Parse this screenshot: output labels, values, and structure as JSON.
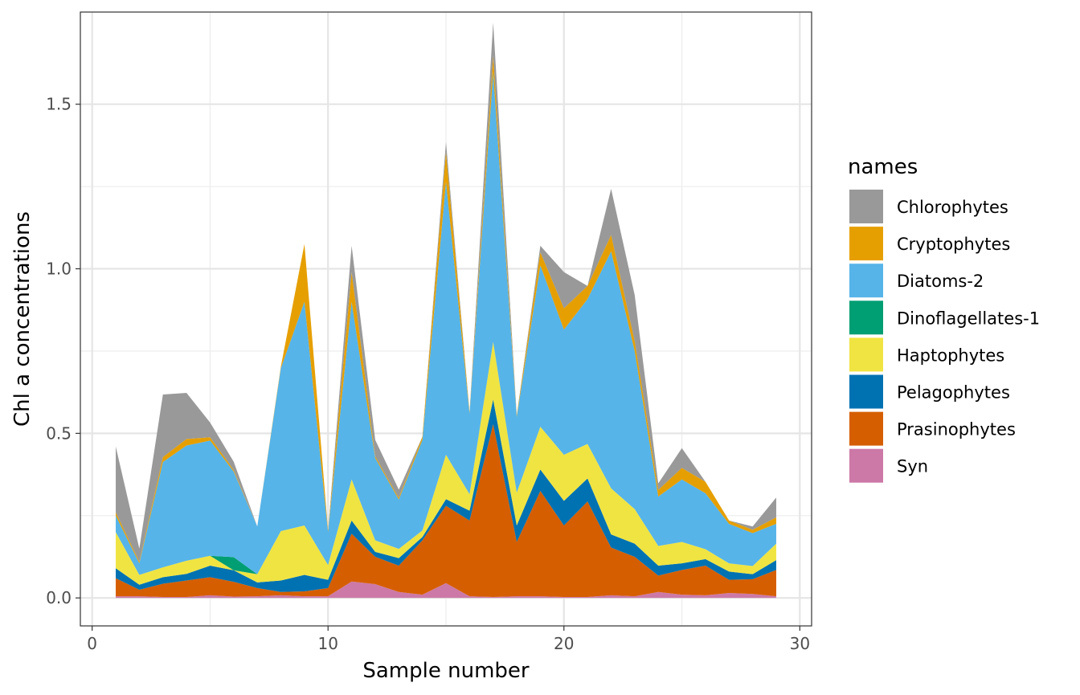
{
  "chart_data": {
    "type": "area",
    "stacked": true,
    "xlabel": "Sample number",
    "ylabel": "Chl a concentrations",
    "xlim": [
      -0.5,
      30.5
    ],
    "ylim": [
      -0.085,
      1.78
    ],
    "x_ticks": [
      0,
      10,
      20,
      30
    ],
    "x_tick_labels": [
      "0",
      "10",
      "20",
      "30"
    ],
    "y_ticks": [
      0.0,
      0.5,
      1.0,
      1.5
    ],
    "y_tick_labels": [
      "0.0",
      "0.5",
      "1.0",
      "1.5"
    ],
    "x_minor_ticks": [
      5,
      15,
      25
    ],
    "y_minor_ticks": [
      0.25,
      0.75,
      1.25
    ],
    "grid": true,
    "legend_position": "right",
    "legend_title": "names",
    "x": [
      1,
      2,
      3,
      4,
      5,
      6,
      7,
      8,
      9,
      10,
      11,
      12,
      13,
      14,
      15,
      16,
      17,
      18,
      19,
      20,
      21,
      22,
      23,
      24,
      25,
      26,
      27,
      28,
      29
    ],
    "series": [
      {
        "name": "Syn",
        "color": "#CC79A7",
        "values": [
          0.005,
          0.005,
          0.003,
          0.003,
          0.008,
          0.004,
          0.005,
          0.008,
          0.005,
          0.005,
          0.05,
          0.042,
          0.018,
          0.01,
          0.045,
          0.005,
          0.003,
          0.005,
          0.005,
          0.003,
          0.003,
          0.008,
          0.005,
          0.018,
          0.01,
          0.008,
          0.015,
          0.012,
          0.005
        ]
      },
      {
        "name": "Prasinophytes",
        "color": "#D55E00",
        "values": [
          0.055,
          0.02,
          0.04,
          0.05,
          0.055,
          0.045,
          0.025,
          0.01,
          0.015,
          0.025,
          0.145,
          0.083,
          0.08,
          0.165,
          0.235,
          0.23,
          0.525,
          0.165,
          0.32,
          0.217,
          0.29,
          0.145,
          0.12,
          0.05,
          0.075,
          0.09,
          0.04,
          0.045,
          0.08
        ]
      },
      {
        "name": "Pelagophytes",
        "color": "#0072B2",
        "values": [
          0.03,
          0.015,
          0.02,
          0.02,
          0.035,
          0.035,
          0.017,
          0.035,
          0.05,
          0.025,
          0.04,
          0.015,
          0.023,
          0.01,
          0.02,
          0.03,
          0.075,
          0.05,
          0.065,
          0.075,
          0.07,
          0.04,
          0.04,
          0.03,
          0.02,
          0.02,
          0.025,
          0.015,
          0.03
        ]
      },
      {
        "name": "Haptophytes",
        "color": "#F0E442",
        "values": [
          0.11,
          0.03,
          0.03,
          0.04,
          0.03,
          0.0,
          0.025,
          0.15,
          0.15,
          0.045,
          0.125,
          0.035,
          0.028,
          0.02,
          0.135,
          0.05,
          0.175,
          0.1,
          0.13,
          0.14,
          0.105,
          0.14,
          0.105,
          0.06,
          0.065,
          0.03,
          0.025,
          0.025,
          0.05
        ]
      },
      {
        "name": "Dinoflagellates-1",
        "color": "#009E73",
        "values": [
          0.0,
          0.0,
          0.0,
          0.0,
          0.0,
          0.04,
          0.0,
          0.0,
          0.0,
          0.0,
          0.0,
          0.0,
          0.0,
          0.0,
          0.0,
          0.0,
          0.0,
          0.0,
          0.0,
          0.0,
          0.0,
          0.0,
          0.0,
          0.0,
          0.0,
          0.0,
          0.0,
          0.0,
          0.0
        ]
      },
      {
        "name": "Diatoms-2",
        "color": "#56B4E9",
        "values": [
          0.05,
          0.035,
          0.32,
          0.35,
          0.35,
          0.26,
          0.145,
          0.495,
          0.68,
          0.1,
          0.54,
          0.25,
          0.15,
          0.275,
          0.83,
          0.245,
          0.82,
          0.23,
          0.49,
          0.38,
          0.44,
          0.72,
          0.48,
          0.15,
          0.19,
          0.17,
          0.12,
          0.1,
          0.06
        ]
      },
      {
        "name": "Cryptophytes",
        "color": "#E69F00",
        "values": [
          0.01,
          0.005,
          0.015,
          0.02,
          0.01,
          0.005,
          0.0,
          0.005,
          0.175,
          0.005,
          0.09,
          0.005,
          0.005,
          0.01,
          0.09,
          0.005,
          0.05,
          0.005,
          0.04,
          0.065,
          0.04,
          0.05,
          0.03,
          0.02,
          0.035,
          0.035,
          0.01,
          0.01,
          0.02
        ]
      },
      {
        "name": "Chlorophytes",
        "color": "#999999",
        "values": [
          0.2,
          0.04,
          0.19,
          0.14,
          0.045,
          0.025,
          0.0,
          0.0,
          0.0,
          0.0,
          0.08,
          0.05,
          0.025,
          0.0,
          0.03,
          0.0,
          0.1,
          0.0,
          0.02,
          0.11,
          0.0,
          0.14,
          0.14,
          0.02,
          0.06,
          0.0,
          0.0,
          0.01,
          0.06
        ]
      }
    ],
    "legend_order": [
      "Chlorophytes",
      "Cryptophytes",
      "Diatoms-2",
      "Dinoflagellates-1",
      "Haptophytes",
      "Pelagophytes",
      "Prasinophytes",
      "Syn"
    ]
  }
}
